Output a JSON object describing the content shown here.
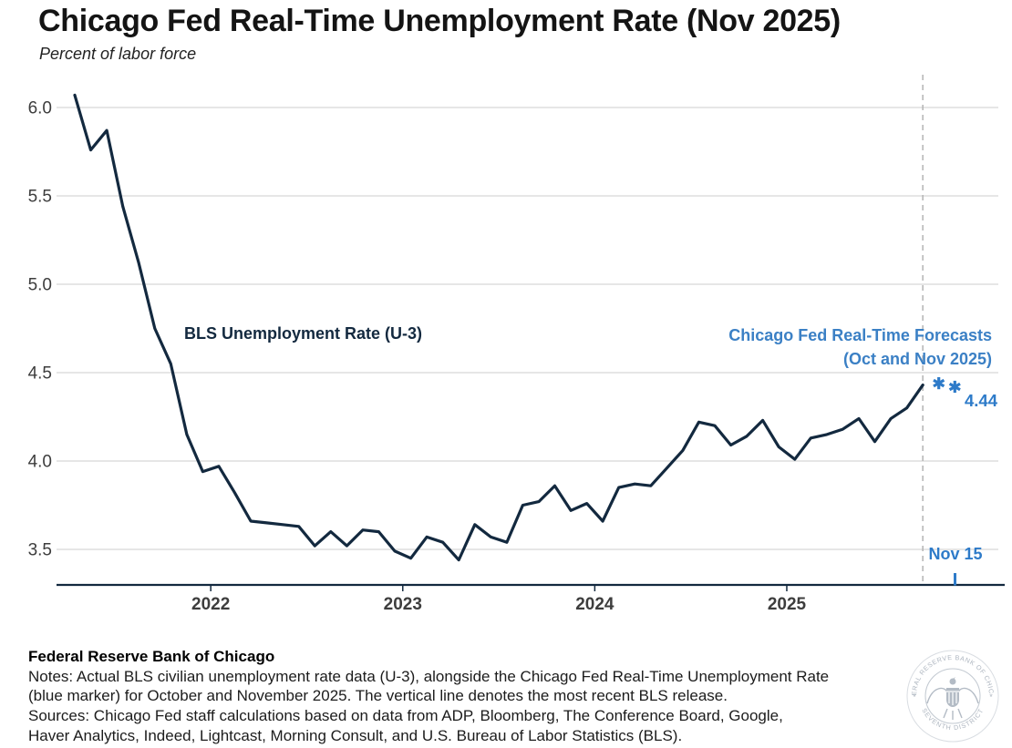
{
  "header": {
    "title": "Chicago Fed Real-Time Unemployment Rate (Nov 2025)",
    "subtitle": "Percent of labor force"
  },
  "chart_data": {
    "type": "line",
    "title": "Chicago Fed Real-Time Unemployment Rate (Nov 2025)",
    "ylabel": "Percent of labor force",
    "grid": true,
    "ylim": [
      3.3,
      6.15
    ],
    "y_ticks": [
      6.0,
      5.5,
      5.0,
      4.5,
      4.0,
      3.5
    ],
    "x_ticks": [
      {
        "label": "2022",
        "month": "2022-01"
      },
      {
        "label": "2023",
        "month": "2023-01"
      },
      {
        "label": "2024",
        "month": "2024-01"
      },
      {
        "label": "2025",
        "month": "2025-01"
      }
    ],
    "series": [
      {
        "name": "BLS Unemployment Rate (U-3)",
        "color": "#13293f",
        "months": [
          "2021-04",
          "2021-05",
          "2021-06",
          "2021-07",
          "2021-08",
          "2021-09",
          "2021-10",
          "2021-11",
          "2021-12",
          "2022-01",
          "2022-02",
          "2022-03",
          "2022-04",
          "2022-05",
          "2022-06",
          "2022-07",
          "2022-08",
          "2022-09",
          "2022-10",
          "2022-11",
          "2022-12",
          "2023-01",
          "2023-02",
          "2023-03",
          "2023-04",
          "2023-05",
          "2023-06",
          "2023-07",
          "2023-08",
          "2023-09",
          "2023-10",
          "2023-11",
          "2023-12",
          "2024-01",
          "2024-02",
          "2024-03",
          "2024-04",
          "2024-05",
          "2024-06",
          "2024-07",
          "2024-08",
          "2024-09",
          "2024-10",
          "2024-11",
          "2024-12",
          "2025-01",
          "2025-02",
          "2025-03",
          "2025-04",
          "2025-05",
          "2025-06",
          "2025-07",
          "2025-08",
          "2025-09"
        ],
        "values": [
          6.07,
          5.76,
          5.87,
          5.44,
          5.12,
          4.75,
          4.55,
          4.15,
          3.94,
          3.97,
          3.82,
          3.66,
          3.65,
          3.64,
          3.63,
          3.52,
          3.6,
          3.52,
          3.61,
          3.6,
          3.49,
          3.45,
          3.57,
          3.54,
          3.44,
          3.64,
          3.57,
          3.54,
          3.75,
          3.77,
          3.86,
          3.72,
          3.76,
          3.66,
          3.85,
          3.87,
          3.86,
          3.96,
          4.06,
          4.22,
          4.2,
          4.09,
          4.14,
          4.23,
          4.08,
          4.01,
          4.13,
          4.15,
          4.18,
          4.24,
          4.11,
          4.24,
          4.3,
          4.43
        ]
      }
    ],
    "forecasts": {
      "name": "Chicago Fed Real-Time Forecasts (Oct and Nov 2025)",
      "color": "#2e7bc9",
      "points": [
        {
          "month": "2025-10",
          "value": 4.44
        },
        {
          "month": "2025-11",
          "value": 4.42
        }
      ],
      "value_label": "4.44"
    },
    "vline": {
      "month": "2025-09",
      "meaning": "most recent BLS release"
    },
    "release_date": {
      "label": "Nov 15",
      "month": "2025-11"
    },
    "annotations": {
      "bls_label": "BLS Unemployment Rate (U-3)",
      "forecast_label_line1": "Chicago Fed Real-Time Forecasts",
      "forecast_label_line2": "(Oct and Nov 2025)"
    }
  },
  "footer": {
    "org": "Federal Reserve Bank of Chicago",
    "notes_lines": [
      "Notes: Actual BLS civilian unemployment rate data (U-3), alongside the Chicago Fed Real-Time Unemployment Rate",
      "(blue marker) for October and November 2025. The vertical line denotes the most recent BLS release.",
      "Sources: Chicago Fed staff calculations based on data from ADP, Bloomberg, The Conference Board, Google,",
      "Haver Analytics, Indeed, Lightcast, Morning Consult, and U.S. Bureau of Labor Statistics (BLS)."
    ],
    "seal_top": "FEDERAL RESERVE BANK OF CHICAGO",
    "seal_bottom": "SEVENTH DISTRICT",
    "seal_separator": "*"
  }
}
